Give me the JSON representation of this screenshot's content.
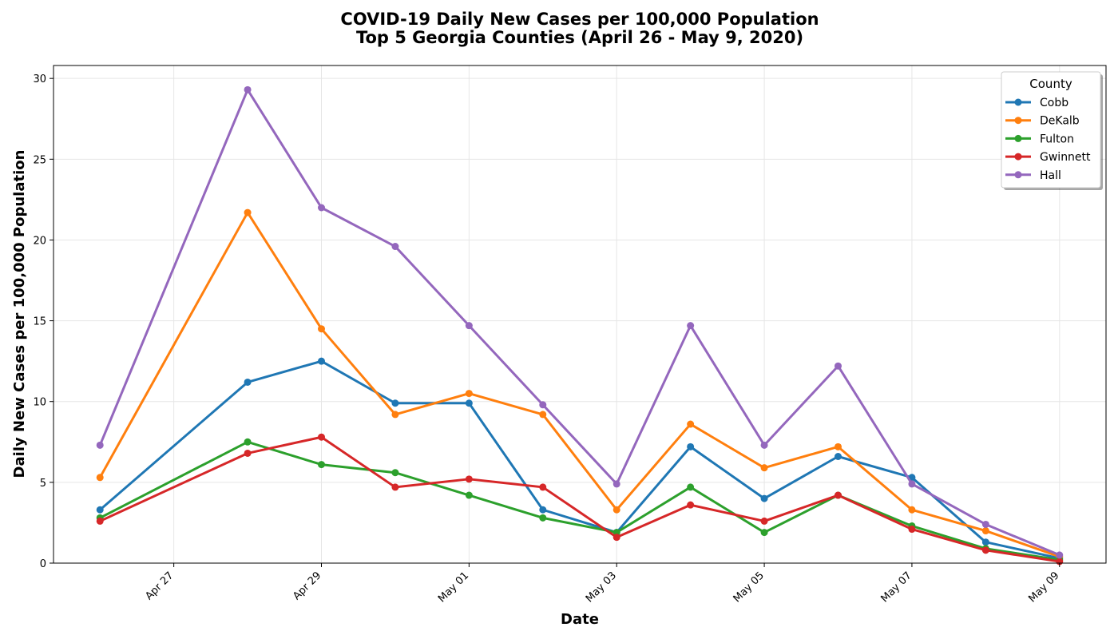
{
  "chart_data": {
    "type": "line",
    "title": [
      "COVID-19 Daily New Cases per 100,000 Population",
      "Top 5 Georgia Counties (April 26 - May 9, 2020)"
    ],
    "xlabel": "Date",
    "ylabel": "Daily New Cases per 100,000 Population",
    "x": [
      "2020-04-26",
      "2020-04-28",
      "2020-04-29",
      "2020-04-30",
      "2020-05-01",
      "2020-05-02",
      "2020-05-03",
      "2020-05-04",
      "2020-05-05",
      "2020-05-06",
      "2020-05-07",
      "2020-05-08",
      "2020-05-09"
    ],
    "xlim": [
      "2020-04-25T08:53",
      "2020-05-09T15:07"
    ],
    "x_ticks": [
      "2020-04-27",
      "2020-04-29",
      "2020-05-01",
      "2020-05-03",
      "2020-05-05",
      "2020-05-07",
      "2020-05-09"
    ],
    "x_tick_labels": [
      "Apr 27",
      "Apr 29",
      "May 01",
      "May 03",
      "May 05",
      "May 07",
      "May 09"
    ],
    "ylim": [
      0,
      30.8
    ],
    "y_ticks": [
      0,
      5,
      10,
      15,
      20,
      25,
      30
    ],
    "grid": true,
    "legend": {
      "title": "County",
      "position": "top-right"
    },
    "series": [
      {
        "name": "Cobb",
        "color": "#1f77b4",
        "values": [
          3.3,
          11.2,
          12.5,
          9.9,
          9.9,
          3.3,
          1.9,
          7.2,
          4.0,
          6.6,
          5.3,
          1.3,
          0.3
        ]
      },
      {
        "name": "DeKalb",
        "color": "#ff7f0e",
        "values": [
          5.3,
          21.7,
          14.5,
          9.2,
          10.5,
          9.2,
          3.3,
          8.6,
          5.9,
          7.2,
          3.3,
          2.0,
          0.4
        ]
      },
      {
        "name": "Fulton",
        "color": "#2ca02c",
        "values": [
          2.8,
          7.5,
          6.1,
          5.6,
          4.2,
          2.8,
          1.9,
          4.7,
          1.9,
          4.2,
          2.3,
          0.9,
          0.2
        ]
      },
      {
        "name": "Gwinnett",
        "color": "#d62728",
        "values": [
          2.6,
          6.8,
          7.8,
          4.7,
          5.2,
          4.7,
          1.6,
          3.6,
          2.6,
          4.2,
          2.1,
          0.8,
          0.1
        ]
      },
      {
        "name": "Hall",
        "color": "#9467bd",
        "values": [
          7.3,
          29.3,
          22.0,
          19.6,
          14.7,
          9.8,
          4.9,
          14.7,
          7.3,
          12.2,
          4.9,
          2.4,
          0.5
        ]
      }
    ]
  }
}
